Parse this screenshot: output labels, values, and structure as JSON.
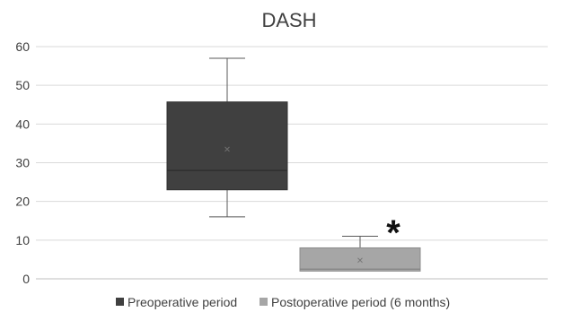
{
  "chart_data": {
    "type": "box",
    "title": "DASH",
    "xlabel": "",
    "ylabel": "",
    "ylim": [
      0,
      60
    ],
    "yticks": [
      "0",
      "10",
      "20",
      "30",
      "40",
      "50",
      "60"
    ],
    "grid": true,
    "legend_position": "bottom",
    "series": [
      {
        "name": "Preoperative period",
        "color": "#404040",
        "min": 16,
        "q1": 23,
        "median": 28,
        "q3": 45.7,
        "max": 57,
        "mean": 33.5
      },
      {
        "name": "Postoperative period (6 months)",
        "color": "#a6a6a6",
        "min": 2,
        "q1": 2,
        "median": 2.5,
        "q3": 8,
        "max": 11,
        "mean": 4.8
      }
    ],
    "annotation": "*"
  }
}
